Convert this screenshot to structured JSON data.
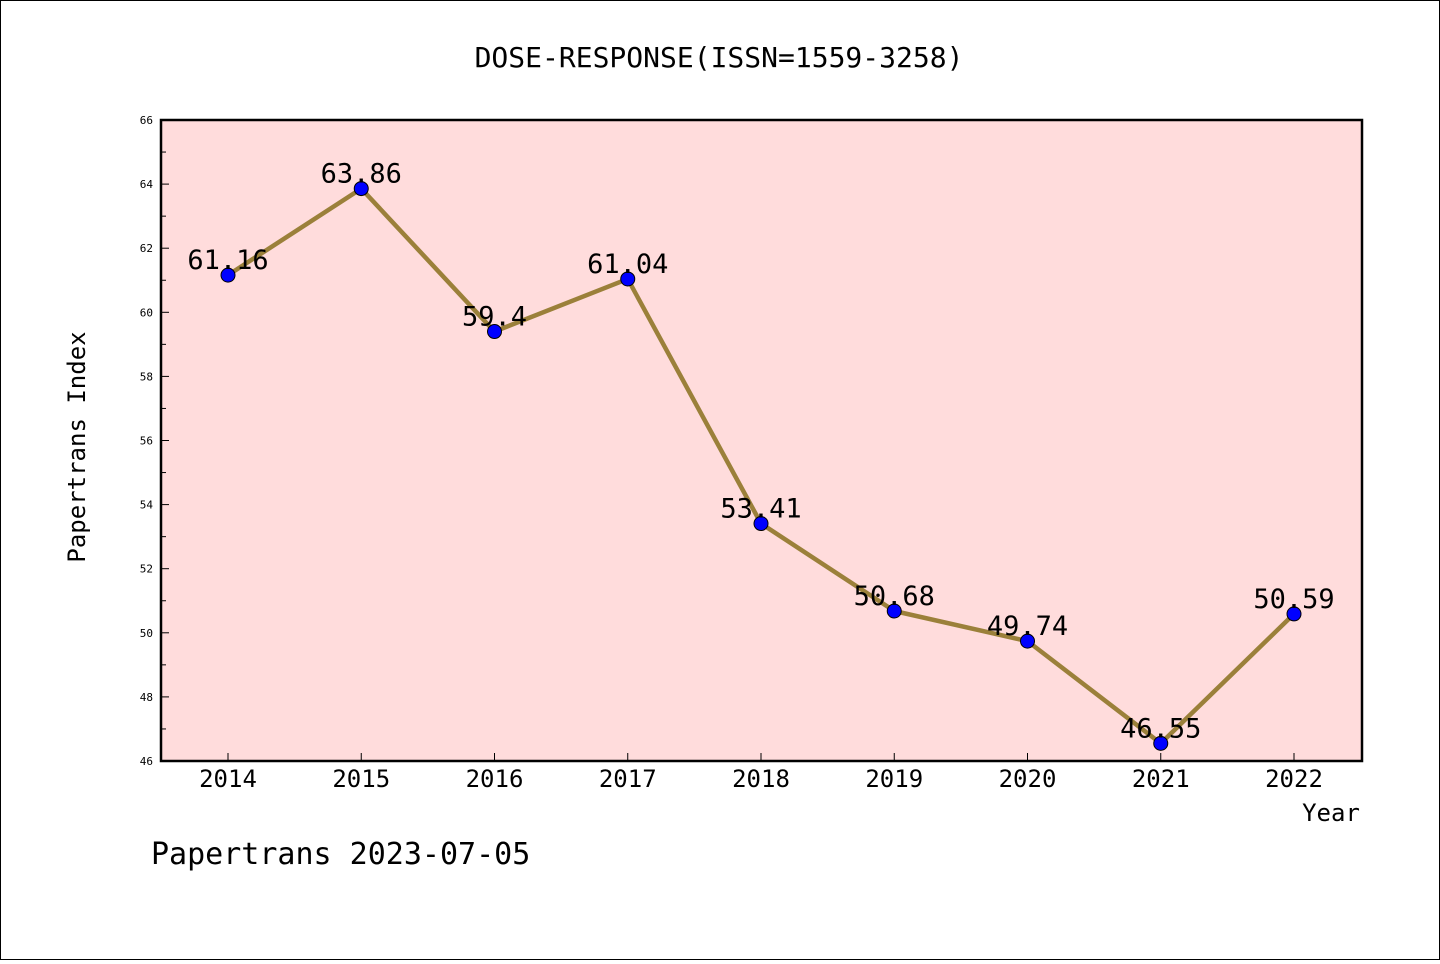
{
  "chart_data": {
    "type": "line",
    "title": "DOSE-RESPONSE(ISSN=1559-3258)",
    "xlabel": "Year",
    "ylabel": "Papertrans Index",
    "categories": [
      "2014",
      "2015",
      "2016",
      "2017",
      "2018",
      "2019",
      "2020",
      "2021",
      "2022"
    ],
    "series": [
      {
        "values": [
          61.16,
          63.86,
          59.4,
          61.04,
          53.41,
          50.68,
          49.74,
          46.55,
          50.59
        ],
        "labels": [
          "61.16",
          "63.86",
          "59.4",
          "61.04",
          "53.41",
          "50.68",
          "49.74",
          "46.55",
          "50.59"
        ]
      }
    ],
    "ylim": [
      46,
      66
    ],
    "yticks": [
      "46",
      "48",
      "50",
      "52",
      "54",
      "56",
      "58",
      "60",
      "62",
      "64",
      "66"
    ],
    "grid": false,
    "colors": {
      "plot_background": "#ffdcdc",
      "line": "#9b803a",
      "marker": "#0000ff"
    }
  },
  "footer": "Papertrans 2023-07-05"
}
